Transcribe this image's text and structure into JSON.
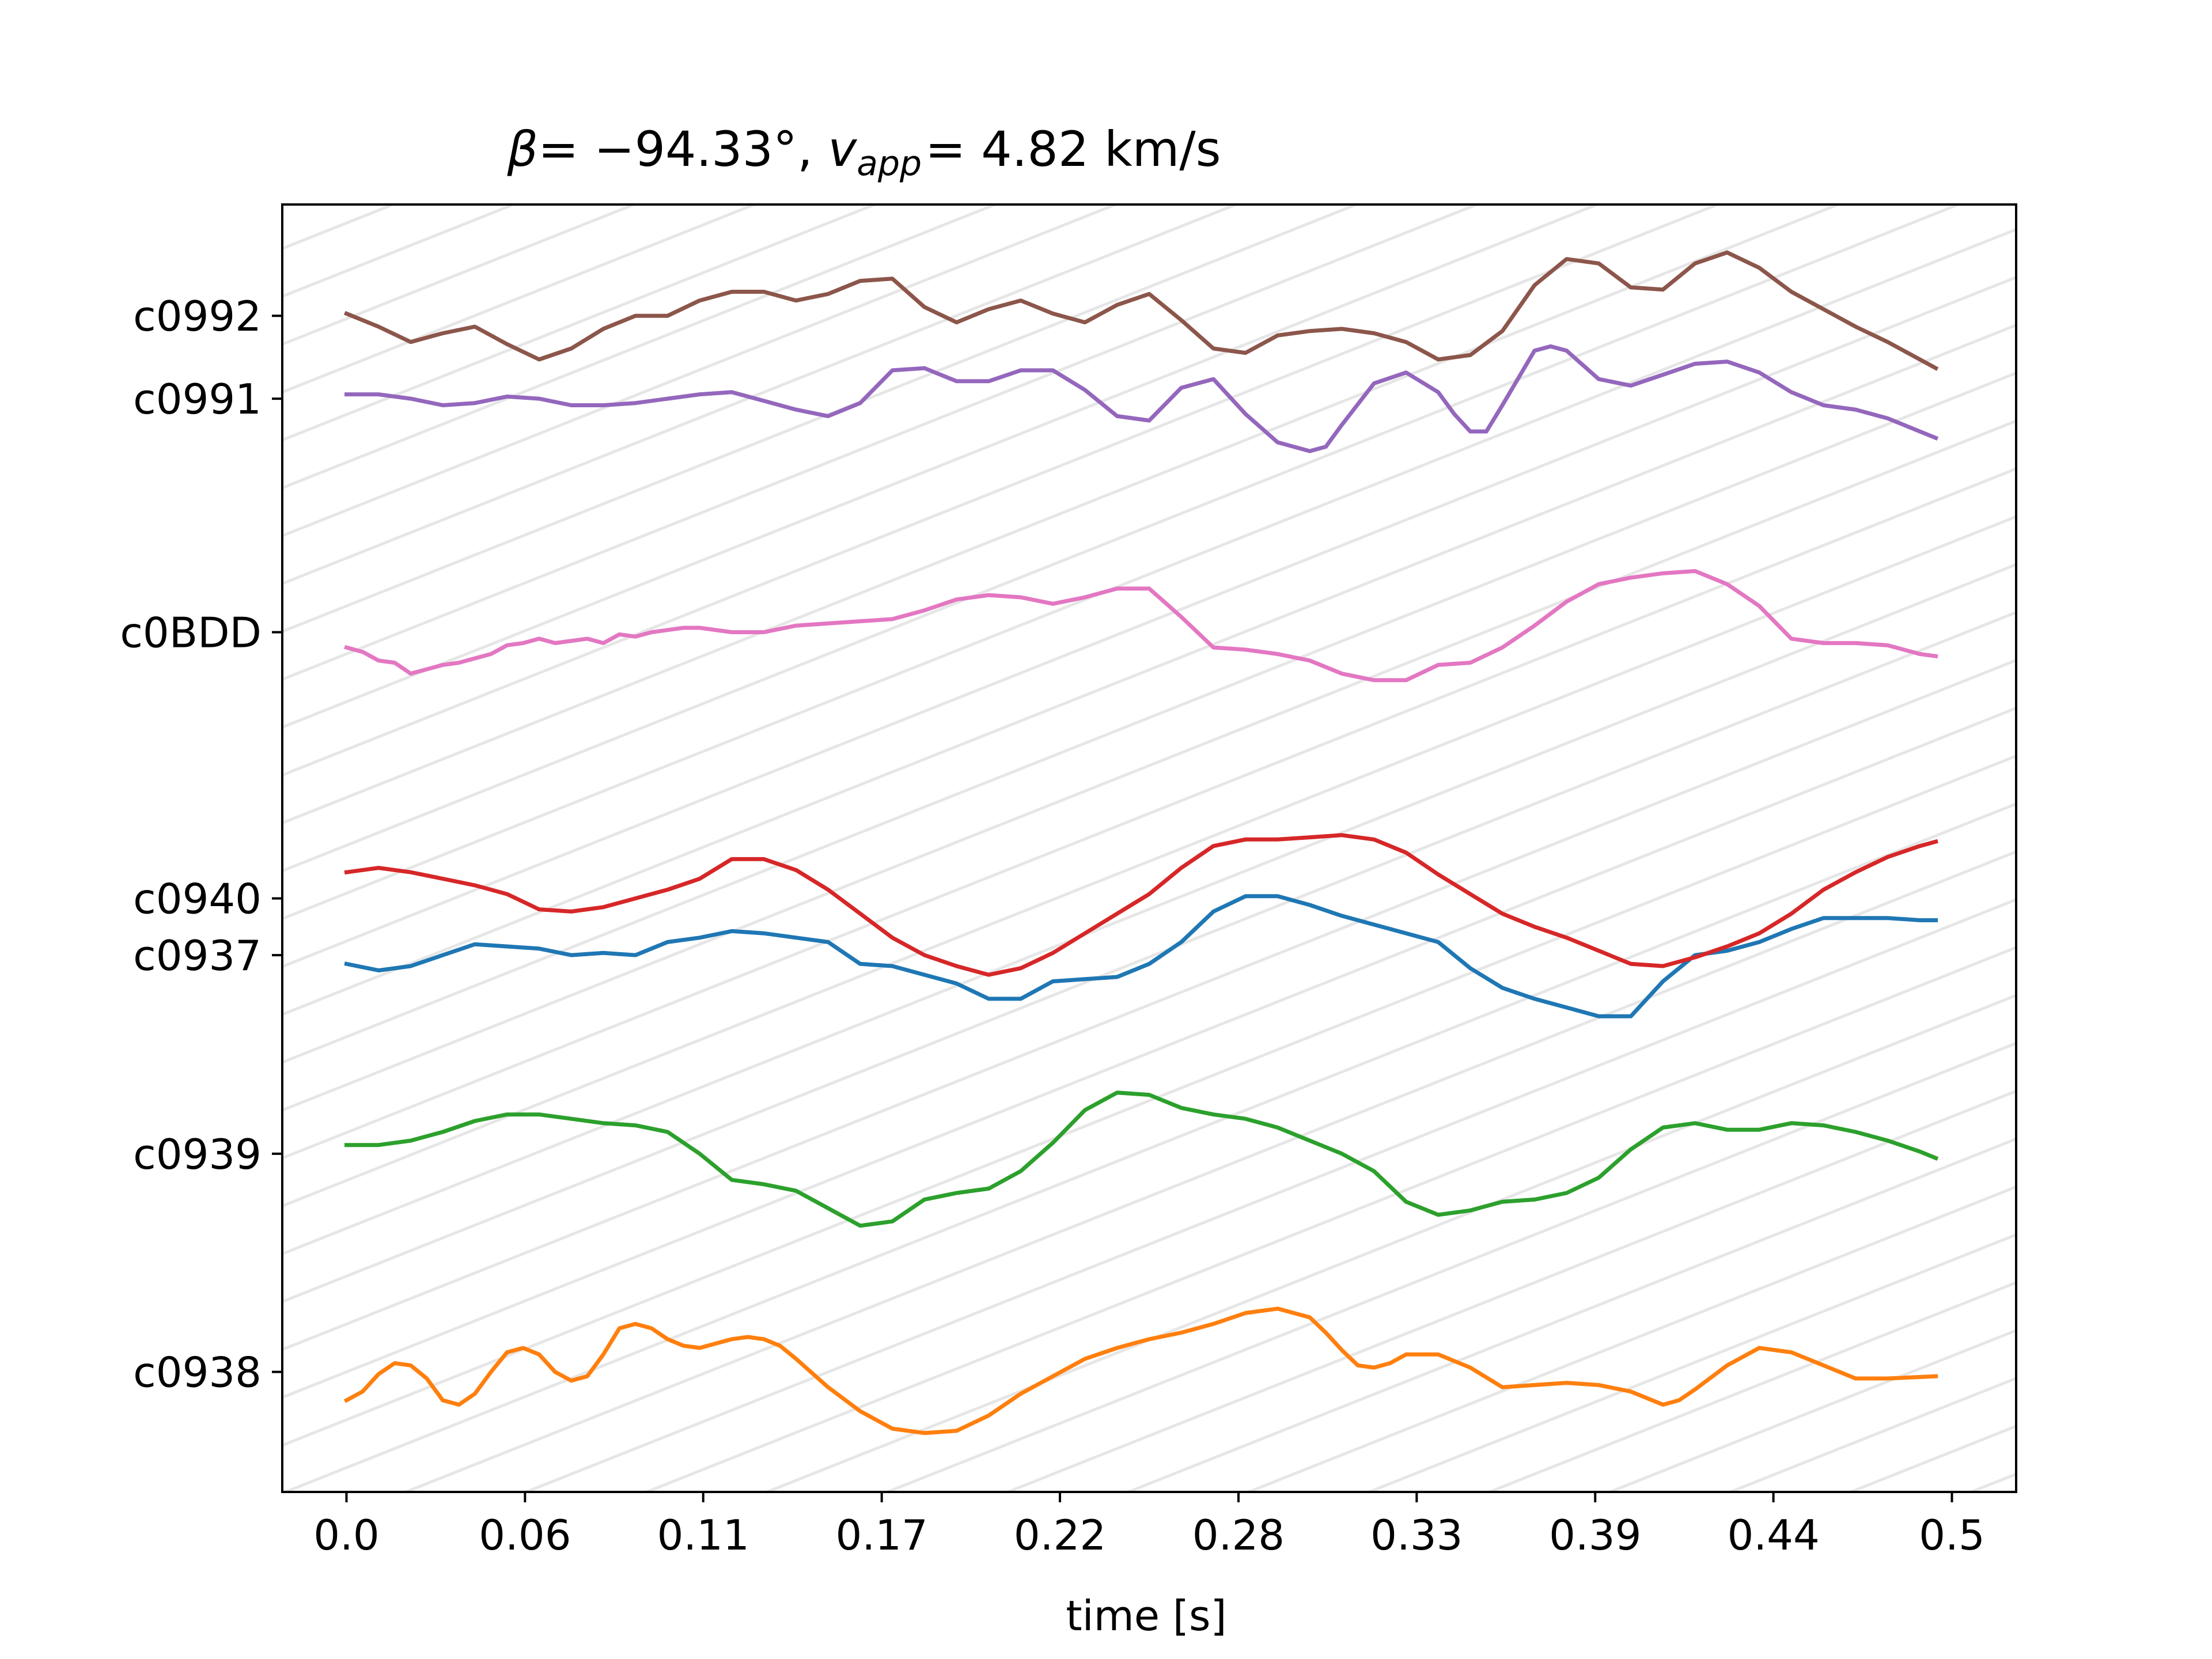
{
  "chart_data": {
    "type": "line",
    "title_parts": {
      "beta_symbol": "β",
      "equals": "= ",
      "beta_value": "−94.33°",
      "comma": ", ",
      "v_symbol": "v",
      "v_subscript": "app",
      "v_equals": "= 4.82 km/s"
    },
    "xlabel": "time [s]",
    "xlim": [
      -0.02,
      0.52
    ],
    "x_ticks": [
      0.0,
      0.0556,
      0.1111,
      0.1667,
      0.2222,
      0.2778,
      0.3333,
      0.3889,
      0.4444,
      0.5
    ],
    "x_tick_labels": [
      "0.0",
      "0.06",
      "0.11",
      "0.17",
      "0.22",
      "0.28",
      "0.33",
      "0.39",
      "0.44",
      "0.5"
    ],
    "ylim": [
      -0.55,
      5.35
    ],
    "y_ticks": [
      0.0,
      1.0,
      1.91,
      2.17,
      3.39,
      4.46,
      4.84
    ],
    "y_tick_labels": [
      "c0938",
      "c0939",
      "c0937",
      "c0940",
      "c0BDD",
      "c0991",
      "c0992"
    ],
    "moveout_lines": {
      "color": "#e6e6e6",
      "slope_y_per_s": 5.85,
      "x_spacing_s": 0.0375
    },
    "series": [
      {
        "name": "c0937",
        "color": "#1f77b4",
        "offset": 1.91,
        "x": [
          0.0,
          0.01,
          0.02,
          0.03,
          0.04,
          0.05,
          0.06,
          0.07,
          0.08,
          0.09,
          0.1,
          0.11,
          0.12,
          0.13,
          0.14,
          0.15,
          0.16,
          0.17,
          0.18,
          0.19,
          0.2,
          0.21,
          0.22,
          0.23,
          0.24,
          0.25,
          0.26,
          0.27,
          0.28,
          0.29,
          0.3,
          0.31,
          0.32,
          0.33,
          0.34,
          0.35,
          0.36,
          0.37,
          0.38,
          0.39,
          0.4,
          0.41,
          0.42,
          0.43,
          0.44,
          0.45,
          0.46,
          0.47,
          0.48,
          0.49,
          0.495
        ],
        "y": [
          -0.04,
          -0.07,
          -0.05,
          0.0,
          0.05,
          0.04,
          0.03,
          0.0,
          0.01,
          0.0,
          0.06,
          0.08,
          0.11,
          0.1,
          0.08,
          0.06,
          -0.04,
          -0.05,
          -0.09,
          -0.13,
          -0.2,
          -0.2,
          -0.12,
          -0.11,
          -0.1,
          -0.04,
          0.06,
          0.2,
          0.27,
          0.27,
          0.23,
          0.18,
          0.14,
          0.1,
          0.06,
          -0.06,
          -0.15,
          -0.2,
          -0.24,
          -0.28,
          -0.28,
          -0.12,
          0.0,
          0.02,
          0.06,
          0.12,
          0.17,
          0.17,
          0.17,
          0.16,
          0.16
        ]
      },
      {
        "name": "c0938",
        "color": "#ff7f0e",
        "offset": 0.0,
        "x": [
          0.0,
          0.005,
          0.01,
          0.015,
          0.02,
          0.025,
          0.03,
          0.035,
          0.04,
          0.045,
          0.05,
          0.055,
          0.06,
          0.065,
          0.07,
          0.075,
          0.08,
          0.085,
          0.09,
          0.095,
          0.1,
          0.105,
          0.11,
          0.115,
          0.12,
          0.125,
          0.13,
          0.135,
          0.14,
          0.15,
          0.16,
          0.17,
          0.18,
          0.19,
          0.2,
          0.21,
          0.22,
          0.23,
          0.24,
          0.25,
          0.26,
          0.27,
          0.28,
          0.29,
          0.3,
          0.305,
          0.31,
          0.315,
          0.32,
          0.325,
          0.33,
          0.34,
          0.35,
          0.36,
          0.37,
          0.38,
          0.39,
          0.4,
          0.41,
          0.415,
          0.42,
          0.43,
          0.44,
          0.45,
          0.46,
          0.47,
          0.48,
          0.495
        ],
        "y": [
          -0.13,
          -0.09,
          -0.01,
          0.04,
          0.03,
          -0.03,
          -0.13,
          -0.15,
          -0.1,
          0.0,
          0.09,
          0.11,
          0.08,
          0.0,
          -0.04,
          -0.02,
          0.08,
          0.2,
          0.22,
          0.2,
          0.15,
          0.12,
          0.11,
          0.13,
          0.15,
          0.16,
          0.15,
          0.12,
          0.06,
          -0.07,
          -0.18,
          -0.26,
          -0.28,
          -0.27,
          -0.2,
          -0.1,
          -0.02,
          0.06,
          0.11,
          0.15,
          0.18,
          0.22,
          0.27,
          0.29,
          0.25,
          0.18,
          0.1,
          0.03,
          0.02,
          0.04,
          0.08,
          0.08,
          0.02,
          -0.07,
          -0.06,
          -0.05,
          -0.06,
          -0.09,
          -0.15,
          -0.13,
          -0.08,
          0.03,
          0.11,
          0.09,
          0.03,
          -0.03,
          -0.03,
          -0.02
        ]
      },
      {
        "name": "c0939",
        "color": "#2ca02c",
        "offset": 1.0,
        "x": [
          0.0,
          0.01,
          0.02,
          0.03,
          0.04,
          0.05,
          0.06,
          0.07,
          0.08,
          0.09,
          0.1,
          0.11,
          0.12,
          0.13,
          0.14,
          0.15,
          0.16,
          0.17,
          0.18,
          0.19,
          0.2,
          0.21,
          0.22,
          0.23,
          0.24,
          0.25,
          0.26,
          0.27,
          0.28,
          0.29,
          0.3,
          0.31,
          0.32,
          0.33,
          0.34,
          0.35,
          0.36,
          0.37,
          0.38,
          0.39,
          0.4,
          0.41,
          0.42,
          0.43,
          0.44,
          0.45,
          0.46,
          0.47,
          0.48,
          0.49,
          0.495
        ],
        "y": [
          0.04,
          0.04,
          0.06,
          0.1,
          0.15,
          0.18,
          0.18,
          0.16,
          0.14,
          0.13,
          0.1,
          0.0,
          -0.12,
          -0.14,
          -0.17,
          -0.25,
          -0.33,
          -0.31,
          -0.21,
          -0.18,
          -0.16,
          -0.08,
          0.05,
          0.2,
          0.28,
          0.27,
          0.21,
          0.18,
          0.16,
          0.12,
          0.06,
          0.0,
          -0.08,
          -0.22,
          -0.28,
          -0.26,
          -0.22,
          -0.21,
          -0.18,
          -0.11,
          0.02,
          0.12,
          0.14,
          0.11,
          0.11,
          0.14,
          0.13,
          0.1,
          0.06,
          0.01,
          -0.02
        ]
      },
      {
        "name": "c0940",
        "color": "#d62728",
        "offset": 2.17,
        "x": [
          0.0,
          0.01,
          0.02,
          0.03,
          0.04,
          0.05,
          0.06,
          0.07,
          0.08,
          0.09,
          0.1,
          0.11,
          0.12,
          0.13,
          0.14,
          0.15,
          0.16,
          0.17,
          0.18,
          0.19,
          0.2,
          0.21,
          0.22,
          0.23,
          0.24,
          0.25,
          0.26,
          0.27,
          0.28,
          0.29,
          0.3,
          0.31,
          0.32,
          0.33,
          0.34,
          0.35,
          0.36,
          0.37,
          0.38,
          0.39,
          0.4,
          0.41,
          0.42,
          0.43,
          0.44,
          0.45,
          0.46,
          0.47,
          0.48,
          0.49,
          0.495
        ],
        "y": [
          0.12,
          0.14,
          0.12,
          0.09,
          0.06,
          0.02,
          -0.05,
          -0.06,
          -0.04,
          0.0,
          0.04,
          0.09,
          0.18,
          0.18,
          0.13,
          0.04,
          -0.07,
          -0.18,
          -0.26,
          -0.31,
          -0.35,
          -0.32,
          -0.25,
          -0.16,
          -0.07,
          0.02,
          0.14,
          0.24,
          0.27,
          0.27,
          0.28,
          0.29,
          0.27,
          0.21,
          0.11,
          0.02,
          -0.07,
          -0.13,
          -0.18,
          -0.24,
          -0.3,
          -0.31,
          -0.27,
          -0.22,
          -0.16,
          -0.07,
          0.04,
          0.12,
          0.19,
          0.24,
          0.26
        ]
      },
      {
        "name": "c0991",
        "color": "#9467bd",
        "offset": 4.46,
        "x": [
          0.0,
          0.01,
          0.02,
          0.03,
          0.04,
          0.05,
          0.06,
          0.07,
          0.08,
          0.09,
          0.1,
          0.11,
          0.12,
          0.13,
          0.14,
          0.15,
          0.16,
          0.17,
          0.18,
          0.19,
          0.2,
          0.21,
          0.22,
          0.23,
          0.24,
          0.25,
          0.26,
          0.27,
          0.28,
          0.29,
          0.3,
          0.305,
          0.31,
          0.32,
          0.33,
          0.34,
          0.345,
          0.35,
          0.355,
          0.36,
          0.37,
          0.375,
          0.38,
          0.39,
          0.4,
          0.41,
          0.42,
          0.43,
          0.44,
          0.45,
          0.46,
          0.47,
          0.48,
          0.49,
          0.495
        ],
        "y": [
          0.02,
          0.02,
          0.0,
          -0.03,
          -0.02,
          0.01,
          0.0,
          -0.03,
          -0.03,
          -0.02,
          0.0,
          0.02,
          0.03,
          -0.01,
          -0.05,
          -0.08,
          -0.02,
          0.13,
          0.14,
          0.08,
          0.08,
          0.13,
          0.13,
          0.04,
          -0.08,
          -0.1,
          0.05,
          0.09,
          -0.07,
          -0.2,
          -0.24,
          -0.22,
          -0.12,
          0.07,
          0.12,
          0.03,
          -0.07,
          -0.15,
          -0.15,
          -0.03,
          0.22,
          0.24,
          0.22,
          0.09,
          0.06,
          0.11,
          0.16,
          0.17,
          0.12,
          0.03,
          -0.03,
          -0.05,
          -0.09,
          -0.15,
          -0.18
        ]
      },
      {
        "name": "c0992",
        "color": "#8c564b",
        "offset": 4.84,
        "x": [
          0.0,
          0.01,
          0.02,
          0.03,
          0.04,
          0.05,
          0.06,
          0.07,
          0.08,
          0.09,
          0.1,
          0.11,
          0.12,
          0.13,
          0.14,
          0.15,
          0.16,
          0.17,
          0.18,
          0.19,
          0.2,
          0.21,
          0.22,
          0.23,
          0.24,
          0.25,
          0.26,
          0.27,
          0.28,
          0.29,
          0.3,
          0.31,
          0.32,
          0.33,
          0.34,
          0.35,
          0.36,
          0.37,
          0.38,
          0.39,
          0.4,
          0.41,
          0.42,
          0.43,
          0.44,
          0.45,
          0.46,
          0.47,
          0.48,
          0.49,
          0.495
        ],
        "y": [
          0.01,
          -0.05,
          -0.12,
          -0.08,
          -0.05,
          -0.13,
          -0.2,
          -0.15,
          -0.06,
          0.0,
          0.0,
          0.07,
          0.11,
          0.11,
          0.07,
          0.1,
          0.16,
          0.17,
          0.04,
          -0.03,
          0.03,
          0.07,
          0.01,
          -0.03,
          0.05,
          0.1,
          -0.02,
          -0.15,
          -0.17,
          -0.09,
          -0.07,
          -0.06,
          -0.08,
          -0.12,
          -0.2,
          -0.18,
          -0.07,
          0.14,
          0.26,
          0.24,
          0.13,
          0.12,
          0.24,
          0.29,
          0.22,
          0.11,
          0.03,
          -0.05,
          -0.12,
          -0.2,
          -0.24
        ]
      },
      {
        "name": "c0BDD",
        "color": "#e377c2",
        "offset": 3.39,
        "x": [
          0.0,
          0.005,
          0.01,
          0.015,
          0.02,
          0.025,
          0.03,
          0.035,
          0.04,
          0.045,
          0.05,
          0.055,
          0.06,
          0.065,
          0.07,
          0.075,
          0.08,
          0.085,
          0.09,
          0.095,
          0.1,
          0.105,
          0.11,
          0.12,
          0.13,
          0.14,
          0.15,
          0.16,
          0.17,
          0.18,
          0.19,
          0.2,
          0.21,
          0.22,
          0.23,
          0.24,
          0.25,
          0.26,
          0.27,
          0.28,
          0.29,
          0.3,
          0.31,
          0.32,
          0.33,
          0.34,
          0.35,
          0.36,
          0.37,
          0.38,
          0.39,
          0.4,
          0.41,
          0.42,
          0.43,
          0.44,
          0.45,
          0.46,
          0.47,
          0.48,
          0.49,
          0.495
        ],
        "y": [
          -0.07,
          -0.09,
          -0.13,
          -0.14,
          -0.19,
          -0.17,
          -0.15,
          -0.14,
          -0.12,
          -0.1,
          -0.06,
          -0.05,
          -0.03,
          -0.05,
          -0.04,
          -0.03,
          -0.05,
          -0.01,
          -0.02,
          -0.0,
          0.01,
          0.02,
          0.02,
          0.0,
          0.0,
          0.03,
          0.04,
          0.05,
          0.06,
          0.1,
          0.15,
          0.17,
          0.16,
          0.13,
          0.16,
          0.2,
          0.2,
          0.07,
          -0.07,
          -0.08,
          -0.1,
          -0.13,
          -0.19,
          -0.22,
          -0.22,
          -0.15,
          -0.14,
          -0.07,
          0.03,
          0.14,
          0.22,
          0.25,
          0.27,
          0.28,
          0.22,
          0.12,
          -0.03,
          -0.05,
          -0.05,
          -0.06,
          -0.1,
          -0.11
        ]
      }
    ]
  }
}
